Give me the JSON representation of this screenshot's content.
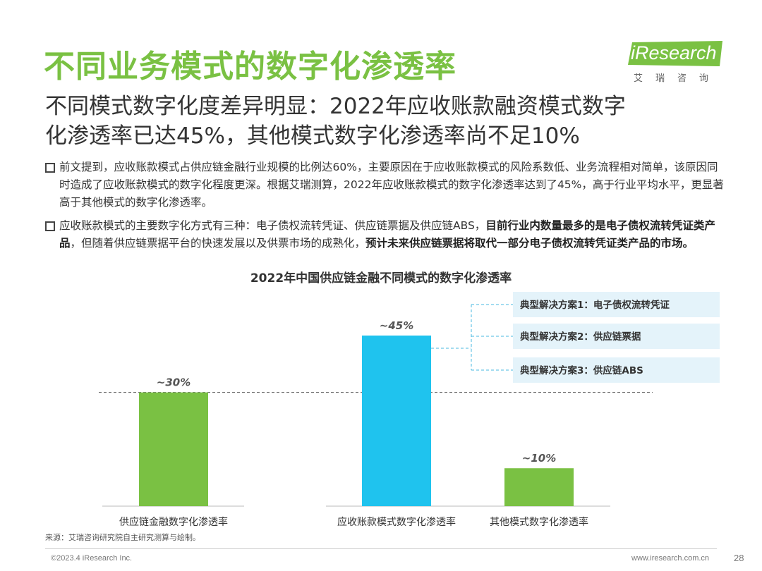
{
  "header": {
    "title": "不同业务模式的数字化渗透率",
    "logo_text": "iResearch",
    "logo_sub": "艾瑞咨询",
    "brand_color": "#7ac143"
  },
  "subtitle_line1": "不同模式数字化度差异明显：2022年应收账款融资模式数字",
  "subtitle_line2": "化渗透率已达45%，其他模式数字化渗透率尚不足10%",
  "bullets": [
    {
      "text": "前文提到，应收账款模式占供应链金融行业规模的比例达60%，主要原因在于应收账款模式的风险系数低、业务流程相对简单，该原因同时造成了应收账款模式的数字化程度更深。根据艾瑞测算，2022年应收账款模式的数字化渗透率达到了45%，高于行业平均水平，更显著高于其他模式的数字化渗透率。"
    },
    {
      "part1": "应收账款模式的主要数字化方式有三种：电子债权流转凭证、供应链票据及供应链ABS，",
      "part2_bold": "目前行业内数量最多的是电子债权流转凭证类产品",
      "part3": "，但随着供应链票据平台的快速发展以及供票市场的成熟化，",
      "part4_bold": "预计未来供应链票据将取代一部分电子债权流转凭证类产品的市场。"
    }
  ],
  "chart_data": {
    "type": "bar",
    "title": "2022年中国供应链金融不同模式的数字化渗透率",
    "categories": [
      "供应链金融数字化渗透率",
      "应收账款模式数字化渗透率",
      "其他模式数字化渗透率"
    ],
    "values": [
      30,
      45,
      10
    ],
    "data_labels": [
      "~30%",
      "~45%",
      "~10%"
    ],
    "colors": [
      "#7ac143",
      "#1fc3ee",
      "#7ac143"
    ],
    "reference_line": 30,
    "ylim": [
      0,
      50
    ],
    "annotations": [
      "典型解决方案1：电子债权流转凭证",
      "典型解决方案2：供应链票据",
      "典型解决方案3：供应链ABS"
    ]
  },
  "source": "来源：艾瑞咨询研究院自主研究测算与绘制。",
  "footer": {
    "copyright": "©2023.4 iResearch Inc.",
    "website": "www.iresearch.com.cn",
    "page_number": "28"
  }
}
